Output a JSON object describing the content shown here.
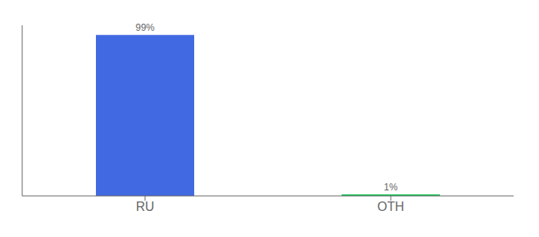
{
  "chart_data": {
    "type": "bar",
    "categories": [
      "RU",
      "OTH"
    ],
    "values": [
      99,
      1
    ],
    "value_labels": [
      "99%",
      "1%"
    ],
    "data_labels": true,
    "colors": [
      "#4169e1",
      "#22c55e"
    ],
    "ylim": [
      0,
      105
    ],
    "grid": false,
    "tick_labels": "x"
  }
}
